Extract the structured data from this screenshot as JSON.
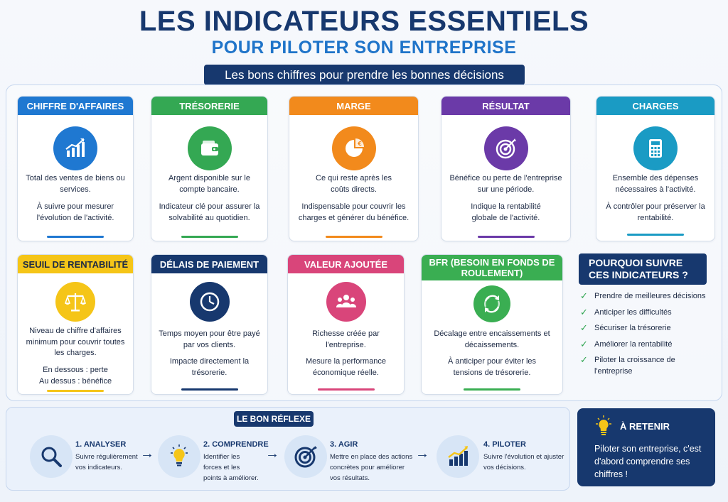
{
  "header": {
    "title": "LES INDICATEURS ESSENTIELS",
    "subtitle": "POUR PILOTER SON ENTREPRISE",
    "tagline": "Les bons chiffres pour prendre les bonnes décisions"
  },
  "colors": {
    "blue": "#1f78d1",
    "green": "#34a853",
    "orange": "#f28a1c",
    "purple": "#6b3aa8",
    "teal": "#1a9bc4",
    "yellow": "#f5c518",
    "navy": "#17386e",
    "pink": "#d9457a",
    "lightgreen": "#3aae52"
  },
  "cards": [
    {
      "title": "CHIFFRE D'AFFAIRES",
      "icon": "chart-growth-icon",
      "desc1": "Total des ventes de biens ou services.",
      "desc2": "À suivre pour mesurer l'évolution de l'activité."
    },
    {
      "title": "TRÉSORERIE",
      "icon": "wallet-icon",
      "desc1": "Argent disponible sur le compte bancaire.",
      "desc2": "Indicateur clé pour assurer la solvabilité au quotidien."
    },
    {
      "title": "MARGE",
      "icon": "pie-euro-icon",
      "desc1": "Ce qui reste après les coûts directs.",
      "desc2": "Indispensable pour couvrir les charges et générer du bénéfice."
    },
    {
      "title": "RÉSULTAT",
      "icon": "target-icon",
      "desc1": "Bénéfice ou perte de l'entreprise sur une période.",
      "desc2": "Indique la rentabilité globale de l'activité."
    },
    {
      "title": "CHARGES",
      "icon": "calculator-icon",
      "desc1": "Ensemble des dépenses nécessaires à l'activité.",
      "desc2": "À contrôler pour préserver la rentabilité."
    },
    {
      "title": "SEUIL DE RENTABILITÉ",
      "icon": "balance-scale-icon",
      "desc1": "Niveau de chiffre d'affaires minimum pour couvrir toutes les charges.",
      "desc2a": "En dessous : perte",
      "desc2b": "Au dessus : bénéfice"
    },
    {
      "title": "DÉLAIS DE PAIEMENT",
      "icon": "clock-icon",
      "desc1": "Temps moyen pour être payé par vos clients.",
      "desc2": "Impacte directement la trésorerie."
    },
    {
      "title": "VALEUR AJOUTÉE",
      "icon": "people-icon",
      "desc1": "Richesse créée par l'entreprise.",
      "desc2": "Mesure la performance économique réelle."
    },
    {
      "title": "BFR (BESOIN EN FONDS DE ROULEMENT)",
      "icon": "cycle-icon",
      "desc1": "Décalage entre encaissements et décaissements.",
      "desc2": "À anticiper pour éviter les tensions de trésorerie."
    }
  ],
  "why": {
    "title": "POURQUOI SUIVRE CES INDICATEURS ?",
    "items": [
      "Prendre de meilleures décisions",
      "Anticiper les difficultés",
      "Sécuriser la trésorerie",
      "Améliorer la rentabilité",
      "Piloter la croissance de l'entreprise"
    ]
  },
  "reflex": {
    "title": "LE BON RÉFLEXE",
    "steps": [
      {
        "title": "1. ANALYSER",
        "desc": "Suivre régulièrement vos indicateurs."
      },
      {
        "title": "2. COMPRENDRE",
        "desc": "Identifier les forces et les points à améliorer."
      },
      {
        "title": "3. AGIR",
        "desc": "Mettre en place des actions concrètes pour améliorer vos résultats."
      },
      {
        "title": "4. PILOTER",
        "desc": "Suivre l'évolution et ajuster vos décisions."
      }
    ]
  },
  "retain": {
    "title": "À RETENIR",
    "text": "Piloter son entreprise, c'est d'abord comprendre ses chiffres !"
  }
}
